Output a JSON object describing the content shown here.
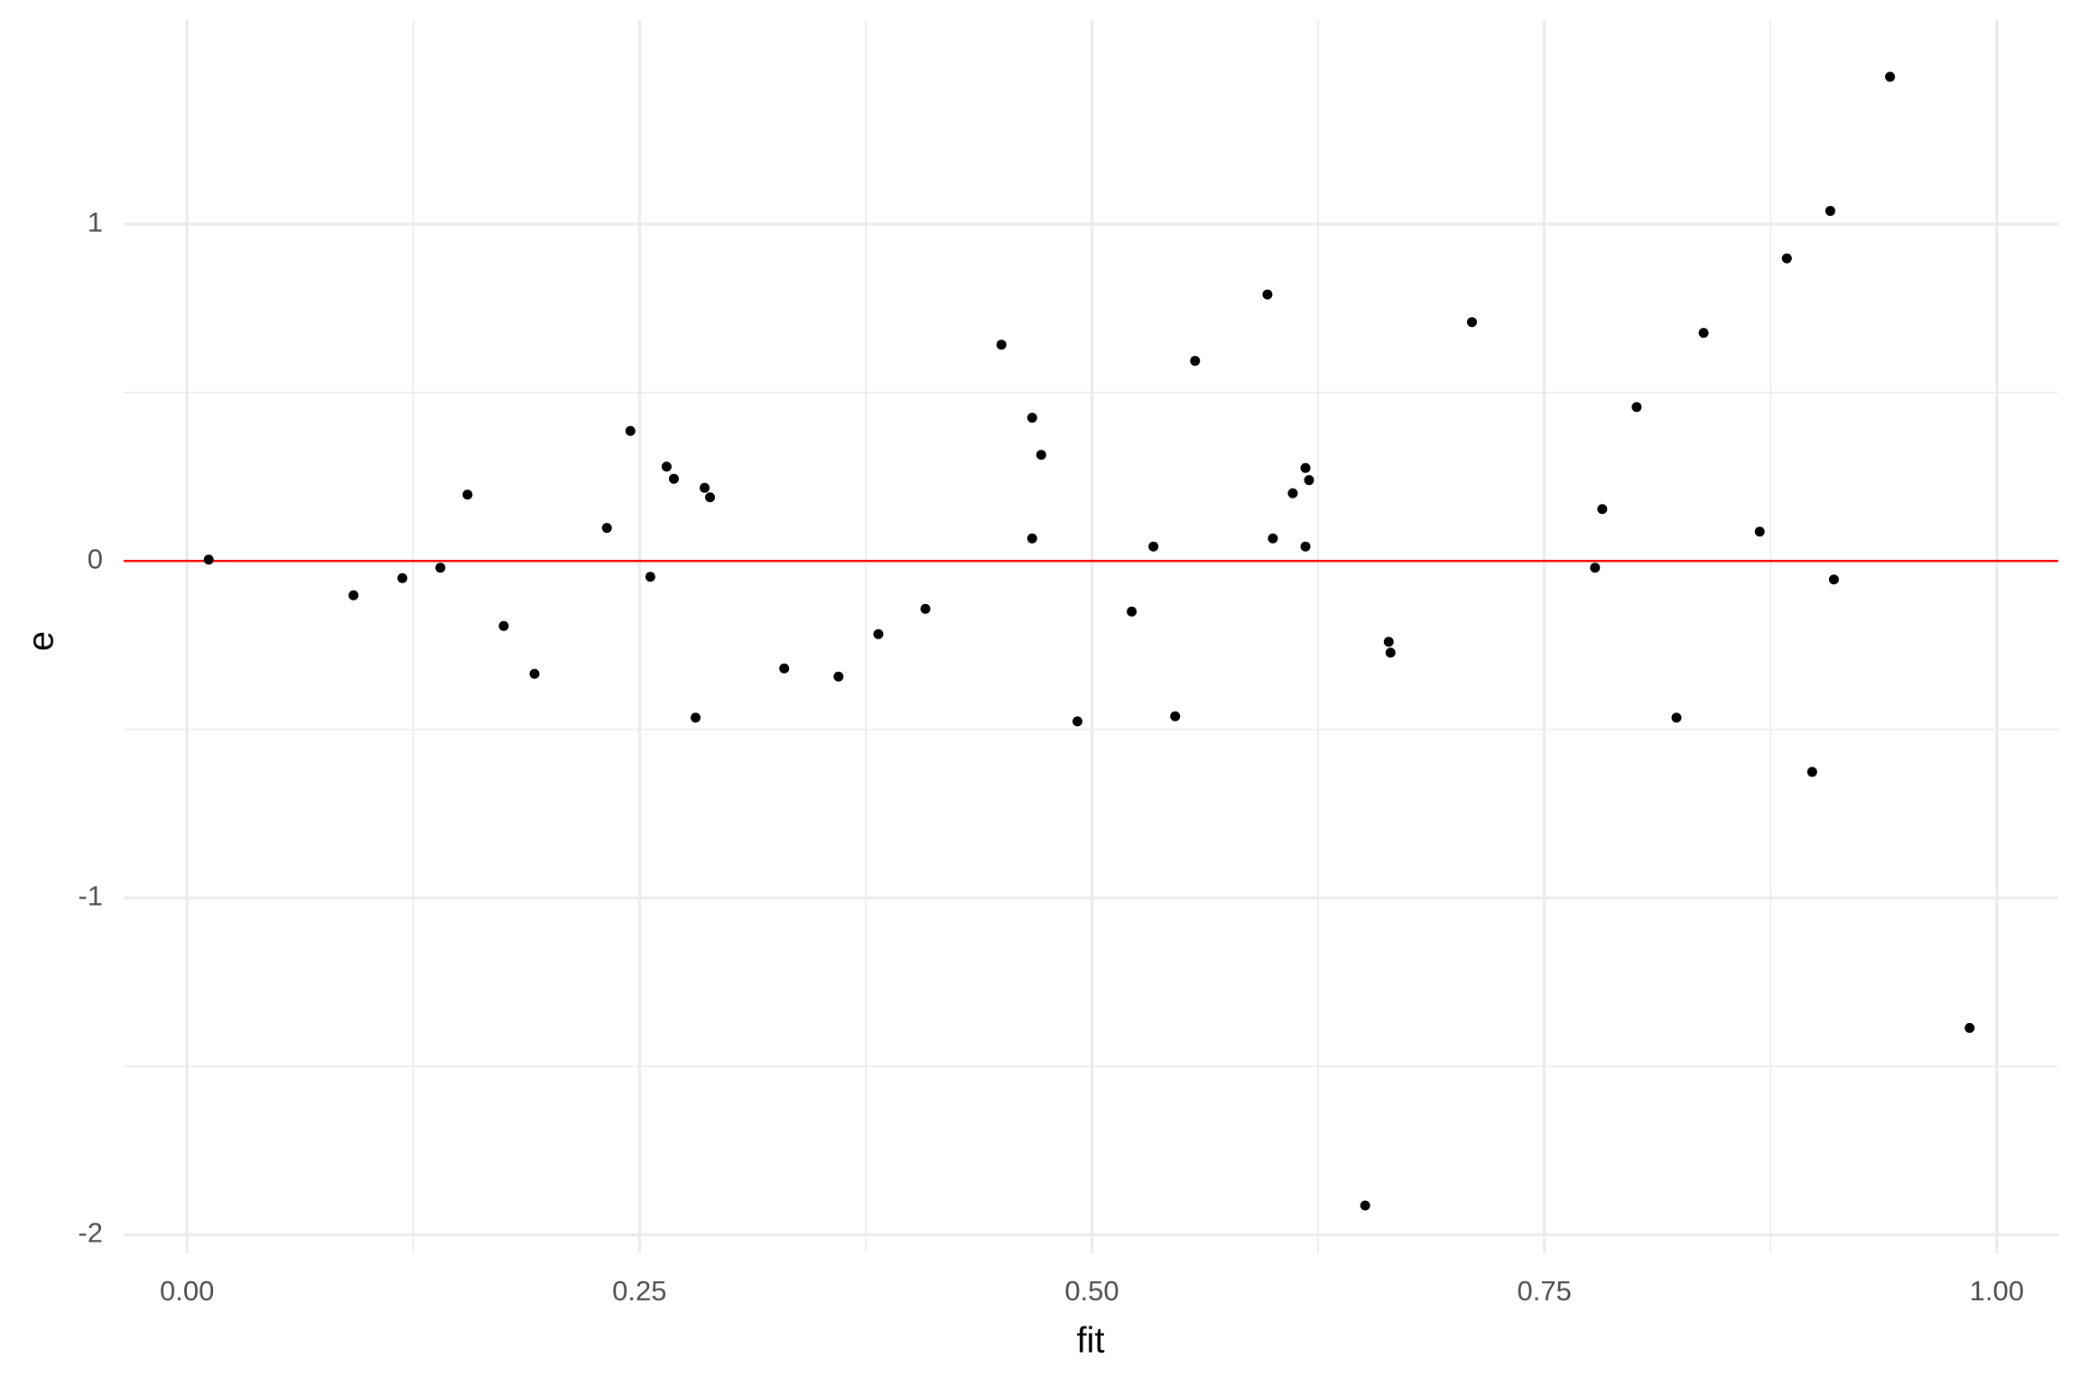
{
  "chart_data": {
    "type": "scatter",
    "x_label": "fit",
    "y_label": "e",
    "xlim": [
      -0.035,
      1.034
    ],
    "ylim": [
      -2.055,
      1.606
    ],
    "xticks": [
      {
        "value": 0,
        "label": "0.00"
      },
      {
        "value": 0.25,
        "label": "0.25"
      },
      {
        "value": 0.5,
        "label": "0.50"
      },
      {
        "value": 0.75,
        "label": "0.75"
      },
      {
        "value": 1,
        "label": "1.00"
      }
    ],
    "yticks": [
      -2,
      -1,
      0,
      1
    ],
    "minor_xticks": [
      0.125,
      0.375,
      0.625,
      0.875
    ],
    "minor_yticks": [
      -1.5,
      -0.5,
      0.5
    ],
    "grid": true,
    "hline": 0,
    "hline_color": "#ff0000",
    "color": "#000000",
    "x": [
      0.012,
      0.092,
      0.119,
      0.14,
      0.155,
      0.175,
      0.192,
      0.232,
      0.245,
      0.256,
      0.265,
      0.269,
      0.281,
      0.286,
      0.289,
      0.33,
      0.36,
      0.382,
      0.408,
      0.45,
      0.467,
      0.467,
      0.472,
      0.492,
      0.522,
      0.534,
      0.546,
      0.557,
      0.597,
      0.6,
      0.611,
      0.618,
      0.62,
      0.618,
      0.651,
      0.664,
      0.665,
      0.71,
      0.778,
      0.782,
      0.801,
      0.823,
      0.838,
      0.869,
      0.884,
      0.898,
      0.908,
      0.91,
      0.941,
      0.985
    ],
    "values": [
      0.004,
      -0.102,
      -0.051,
      -0.02,
      0.197,
      -0.193,
      -0.335,
      0.098,
      0.386,
      -0.047,
      0.28,
      0.244,
      -0.465,
      0.217,
      0.189,
      -0.319,
      -0.343,
      -0.217,
      -0.142,
      0.642,
      0.425,
      0.067,
      0.315,
      -0.476,
      -0.15,
      0.043,
      -0.461,
      0.594,
      0.791,
      0.067,
      0.201,
      0.276,
      0.24,
      0.043,
      -1.913,
      -0.24,
      -0.272,
      0.709,
      -0.02,
      0.154,
      0.457,
      -0.465,
      0.677,
      0.087,
      0.898,
      -0.626,
      1.039,
      -0.055,
      1.437,
      -1.386
    ]
  }
}
